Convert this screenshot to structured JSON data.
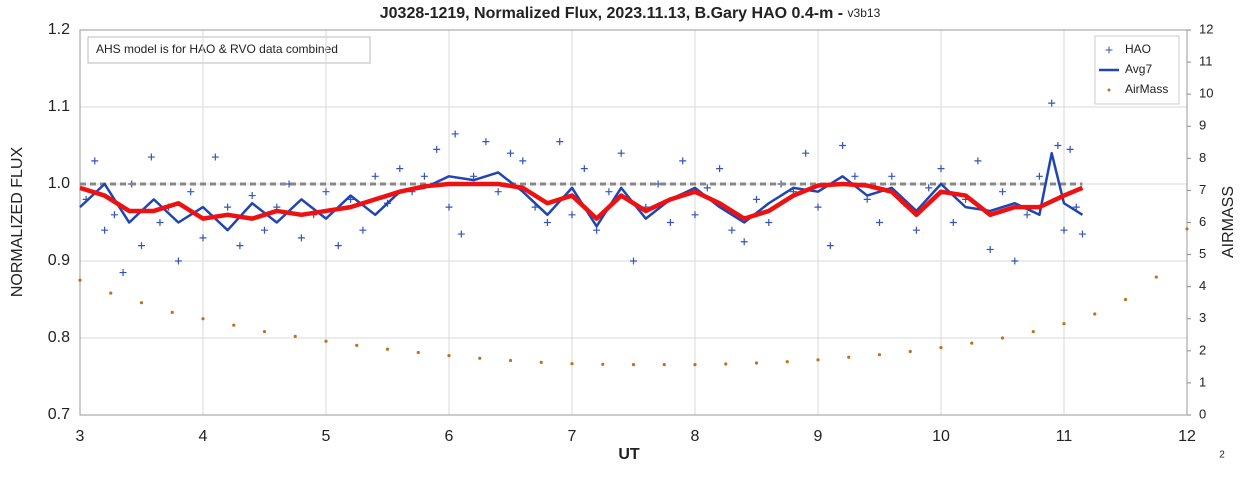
{
  "chart_data": {
    "type": "scatter_line",
    "title": "J0328-1219, Normalized Flux, 2023.11.13, B.Gary HAO 0.4-m - ",
    "subtitle": "v3b13",
    "annotation": "AHS model is for HAO & RVO data combined",
    "xlabel": "UT",
    "ylabel": "NORMALIZED FLUX",
    "y2label": "AIRMASS",
    "corner_label": "2",
    "xlim": [
      3,
      12
    ],
    "xticks": [
      3,
      4,
      5,
      6,
      7,
      8,
      9,
      10,
      11,
      12
    ],
    "ylim": [
      0.7,
      1.2
    ],
    "yticks": [
      0.7,
      0.8,
      0.9,
      {
        "value": 1,
        "label": "1.0"
      },
      1.1,
      1.2
    ],
    "y2lim": [
      0,
      12
    ],
    "y2ticks": [
      0,
      1,
      2,
      3,
      4,
      5,
      6,
      7,
      8,
      9,
      10,
      11,
      12
    ],
    "grid": true,
    "legend": "upper right",
    "series": [
      {
        "name": "HAO",
        "kind": "scatter",
        "color": "#3355bb",
        "x": [
          3.05,
          3.12,
          3.2,
          3.28,
          3.35,
          3.42,
          3.5,
          3.58,
          3.65,
          3.72,
          3.8,
          3.9,
          4.0,
          4.1,
          4.2,
          4.3,
          4.4,
          4.5,
          4.6,
          4.7,
          4.8,
          4.9,
          5.0,
          5.1,
          5.2,
          5.3,
          5.4,
          5.5,
          5.6,
          5.7,
          5.8,
          5.9,
          6.0,
          6.05,
          6.1,
          6.2,
          6.3,
          6.4,
          6.5,
          6.6,
          6.7,
          6.8,
          6.9,
          7.0,
          7.1,
          7.2,
          7.3,
          7.4,
          7.5,
          7.6,
          7.7,
          7.8,
          7.9,
          8.0,
          8.1,
          8.2,
          8.3,
          8.4,
          8.5,
          8.6,
          8.7,
          8.8,
          8.9,
          9.0,
          9.1,
          9.2,
          9.3,
          9.4,
          9.5,
          9.6,
          9.7,
          9.8,
          9.9,
          10.0,
          10.1,
          10.2,
          10.3,
          10.4,
          10.5,
          10.6,
          10.7,
          10.8,
          10.9,
          10.95,
          11.0,
          11.05,
          11.1,
          11.15
        ],
        "values": [
          0.98,
          1.03,
          0.94,
          0.96,
          0.885,
          1.0,
          0.92,
          1.035,
          0.95,
          0.97,
          0.9,
          0.99,
          0.93,
          1.035,
          0.97,
          0.92,
          0.985,
          0.94,
          0.97,
          1.0,
          0.93,
          0.96,
          0.99,
          0.92,
          0.98,
          0.94,
          1.01,
          0.975,
          1.02,
          0.99,
          1.01,
          1.045,
          0.97,
          1.065,
          0.935,
          1.01,
          1.055,
          0.99,
          1.04,
          1.03,
          0.97,
          0.95,
          1.055,
          0.96,
          1.02,
          0.94,
          0.99,
          1.04,
          0.9,
          0.97,
          1.0,
          0.95,
          1.03,
          0.96,
          0.995,
          1.02,
          0.94,
          0.925,
          0.98,
          0.95,
          1.0,
          0.99,
          1.04,
          0.97,
          0.92,
          1.05,
          1.01,
          0.98,
          0.95,
          1.01,
          0.975,
          0.94,
          0.995,
          1.02,
          0.95,
          0.98,
          1.03,
          0.915,
          0.99,
          0.9,
          0.96,
          1.01,
          1.105,
          1.05,
          0.94,
          1.045,
          0.97,
          0.935
        ]
      },
      {
        "name": "Avg7",
        "kind": "line",
        "color": "#1f45b5",
        "width": 2.5,
        "x": [
          3.0,
          3.2,
          3.4,
          3.6,
          3.8,
          4.0,
          4.2,
          4.4,
          4.6,
          4.8,
          5.0,
          5.2,
          5.4,
          5.6,
          5.8,
          6.0,
          6.2,
          6.4,
          6.6,
          6.8,
          7.0,
          7.2,
          7.4,
          7.6,
          7.8,
          8.0,
          8.2,
          8.4,
          8.6,
          8.8,
          9.0,
          9.2,
          9.4,
          9.6,
          9.8,
          10.0,
          10.2,
          10.4,
          10.6,
          10.8,
          10.9,
          11.0,
          11.15
        ],
        "values": [
          0.97,
          1.0,
          0.95,
          0.98,
          0.95,
          0.97,
          0.94,
          0.975,
          0.95,
          0.98,
          0.955,
          0.985,
          0.96,
          0.99,
          0.995,
          1.01,
          1.005,
          1.015,
          0.99,
          0.96,
          0.995,
          0.945,
          0.995,
          0.955,
          0.98,
          0.995,
          0.97,
          0.95,
          0.975,
          0.995,
          0.99,
          1.01,
          0.985,
          0.995,
          0.965,
          1.0,
          0.97,
          0.965,
          0.975,
          0.96,
          1.04,
          0.975,
          0.96
        ]
      },
      {
        "kind": "line",
        "color": "#ee1111",
        "width": 4.5,
        "x": [
          3.0,
          3.2,
          3.4,
          3.6,
          3.8,
          4.0,
          4.2,
          4.4,
          4.6,
          4.8,
          5.0,
          5.2,
          5.4,
          5.6,
          5.8,
          6.0,
          6.2,
          6.4,
          6.6,
          6.8,
          7.0,
          7.2,
          7.4,
          7.6,
          7.8,
          8.0,
          8.2,
          8.4,
          8.6,
          8.8,
          9.0,
          9.2,
          9.4,
          9.6,
          9.8,
          10.0,
          10.2,
          10.4,
          10.6,
          10.8,
          11.0,
          11.15
        ],
        "values": [
          0.995,
          0.985,
          0.965,
          0.965,
          0.975,
          0.955,
          0.96,
          0.955,
          0.965,
          0.96,
          0.965,
          0.97,
          0.98,
          0.99,
          0.997,
          1.0,
          1.0,
          1.0,
          0.995,
          0.975,
          0.985,
          0.955,
          0.985,
          0.965,
          0.98,
          0.99,
          0.975,
          0.955,
          0.965,
          0.985,
          0.998,
          1.0,
          0.998,
          0.99,
          0.96,
          0.99,
          0.985,
          0.96,
          0.97,
          0.97,
          0.985,
          0.995
        ]
      },
      {
        "kind": "dashed",
        "color": "#888888",
        "width": 3,
        "x": [
          3.0,
          11.15
        ],
        "values": [
          1,
          1
        ]
      },
      {
        "name": "AirMass",
        "kind": "dots",
        "axis": "y2",
        "color": "#c07020",
        "x": [
          3.0,
          3.25,
          3.5,
          3.75,
          4.0,
          4.25,
          4.5,
          4.75,
          5.0,
          5.25,
          5.5,
          5.75,
          6.0,
          6.25,
          6.5,
          6.75,
          7.0,
          7.25,
          7.5,
          7.75,
          8.0,
          8.25,
          8.5,
          8.75,
          9.0,
          9.25,
          9.5,
          9.75,
          10.0,
          10.25,
          10.5,
          10.75,
          11.0,
          11.25,
          11.5,
          11.75,
          12.0
        ],
        "values": [
          4.2,
          3.8,
          3.5,
          3.2,
          3.0,
          2.8,
          2.6,
          2.45,
          2.3,
          2.17,
          2.05,
          1.95,
          1.85,
          1.77,
          1.7,
          1.64,
          1.6,
          1.58,
          1.57,
          1.57,
          1.57,
          1.59,
          1.62,
          1.66,
          1.72,
          1.8,
          1.88,
          1.98,
          2.1,
          2.24,
          2.4,
          2.6,
          2.85,
          3.15,
          3.6,
          4.3,
          5.8
        ]
      }
    ]
  }
}
